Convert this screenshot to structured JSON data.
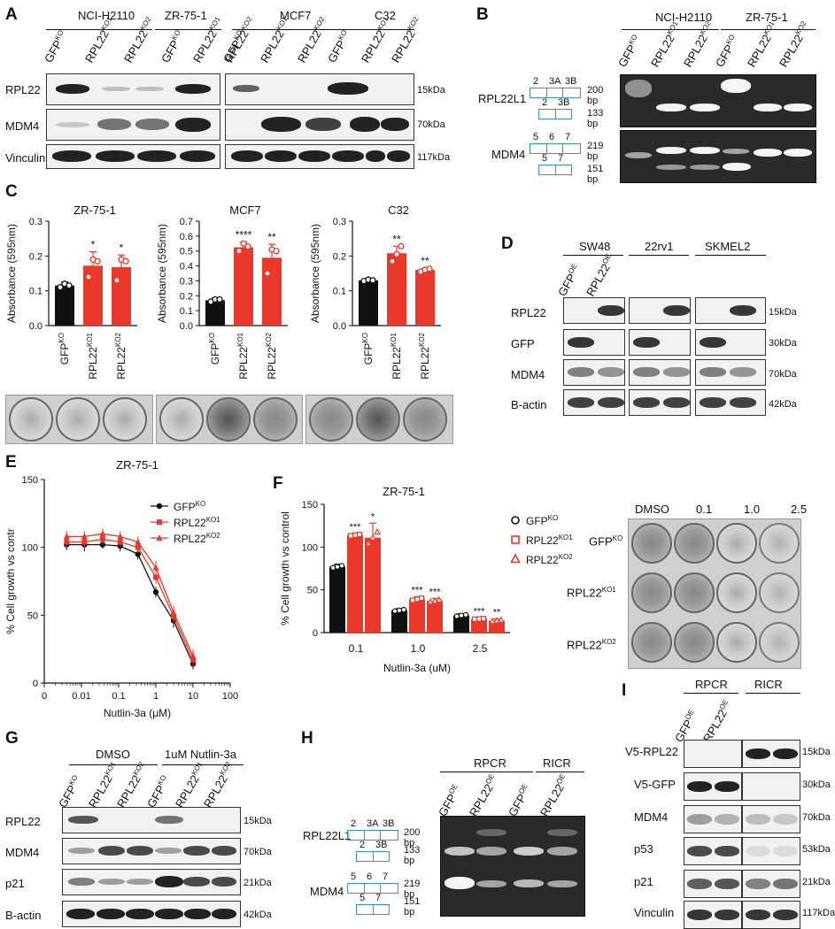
{
  "panels": {
    "A": {
      "letter": "A",
      "cell_lines": [
        "NCI-H2110",
        "ZR-75-1",
        "MCF7",
        "C32"
      ],
      "lanes": [
        {
          "base": "GFP",
          "sup": "KO"
        },
        {
          "base": "RPL22",
          "sup": "KO1"
        },
        {
          "base": "RPL22",
          "sup": "KO2"
        },
        {
          "base": "GFP",
          "sup": "KO"
        },
        {
          "base": "RPL22",
          "sup": "KO1"
        },
        {
          "base": "RPL22",
          "sup": "KO2"
        },
        {
          "base": "GFP",
          "sup": "KO"
        },
        {
          "base": "RPL22",
          "sup": "KO1"
        },
        {
          "base": "RPL22",
          "sup": "KO2"
        },
        {
          "base": "GFP",
          "sup": "KO"
        },
        {
          "base": "RPL22",
          "sup": "KO1"
        },
        {
          "base": "RPL22",
          "sup": "KO2"
        }
      ],
      "rows": [
        {
          "name": "RPL22",
          "kda": "15kDa"
        },
        {
          "name": "MDM4",
          "kda": "70kDa"
        },
        {
          "name": "Vinculin",
          "kda": "117kDa"
        }
      ]
    },
    "B": {
      "letter": "B",
      "cell_lines": [
        "NCI-H2110",
        "ZR-75-1"
      ],
      "lanes": [
        {
          "base": "GFP",
          "sup": "KO"
        },
        {
          "base": "RPL22",
          "sup": "KO1"
        },
        {
          "base": "RPL22",
          "sup": "KO2"
        },
        {
          "base": "GFP",
          "sup": "KO"
        },
        {
          "base": "RPL22",
          "sup": "KO1"
        },
        {
          "base": "RPL22",
          "sup": "KO2"
        }
      ],
      "genes": [
        {
          "name": "RPL22L1",
          "exons_top": [
            "2",
            "3A",
            "3B"
          ],
          "exons_bottom": [
            "2",
            "3B"
          ],
          "sizes": [
            "200 bp",
            "133 bp"
          ]
        },
        {
          "name": "MDM4",
          "exons_top": [
            "5",
            "6",
            "7"
          ],
          "exons_bottom": [
            "5",
            "7"
          ],
          "sizes": [
            "219 bp",
            "151 bp"
          ]
        }
      ]
    },
    "C": {
      "letter": "C",
      "ylabel": "Absorbance (595nm)",
      "xlabels": [
        {
          "base": "GFP",
          "sup": "KO"
        },
        {
          "base": "RPL22",
          "sup": "KO1"
        },
        {
          "base": "RPL22",
          "sup": "KO2"
        }
      ]
    },
    "D": {
      "letter": "D",
      "cell_lines": [
        "SW48",
        "22rv1",
        "SKMEL2"
      ],
      "lanes": [
        {
          "base": "GFP",
          "sup": "OE"
        },
        {
          "base": "RPL22",
          "sup": "OE"
        }
      ],
      "rows": [
        {
          "name": "RPL22",
          "kda": "15kDa"
        },
        {
          "name": "GFP",
          "kda": "30kDa"
        },
        {
          "name": "MDM4",
          "kda": "70kDa"
        },
        {
          "name": "B-actin",
          "kda": "42kDa"
        }
      ]
    },
    "E": {
      "letter": "E"
    },
    "F": {
      "letter": "F",
      "plate_cols": [
        "DMSO",
        "0.1",
        "1.0",
        "2.5"
      ],
      "plate_rows": [
        {
          "base": "GFP",
          "sup": "KO"
        },
        {
          "base": "RPL22",
          "sup": "KO1"
        },
        {
          "base": "RPL22",
          "sup": "KO2"
        }
      ]
    },
    "G": {
      "letter": "G",
      "groups": [
        "DMSO",
        "1uM Nutlin-3a"
      ],
      "lanes": [
        {
          "base": "GFP",
          "sup": "KO"
        },
        {
          "base": "RPL22",
          "sup": "KO1"
        },
        {
          "base": "RPL22",
          "sup": "KO2"
        },
        {
          "base": "GFP",
          "sup": "KO"
        },
        {
          "base": "RPL22",
          "sup": "KO1"
        },
        {
          "base": "RPL22",
          "sup": "KO2"
        }
      ],
      "rows": [
        {
          "name": "RPL22",
          "kda": "15kDa"
        },
        {
          "name": "MDM4",
          "kda": "70kDa"
        },
        {
          "name": "p21",
          "kda": "21kDa"
        },
        {
          "name": "B-actin",
          "kda": "42kDa"
        }
      ]
    },
    "H": {
      "letter": "H",
      "groups": [
        "RPCR",
        "RICR"
      ],
      "lanes": [
        {
          "base": "GFP",
          "sup": "OE"
        },
        {
          "base": "RPL22",
          "sup": "OE"
        },
        {
          "base": "GFP",
          "sup": "OE"
        },
        {
          "base": "RPL22",
          "sup": "OE"
        }
      ],
      "genes": [
        {
          "name": "RPL22L1",
          "exons_top": [
            "2",
            "3A",
            "3B"
          ],
          "exons_bottom": [
            "2",
            "3B"
          ],
          "sizes": [
            "200 bp",
            "133 bp"
          ]
        },
        {
          "name": "MDM4",
          "exons_top": [
            "5",
            "6",
            "7"
          ],
          "exons_bottom": [
            "5",
            "7"
          ],
          "sizes": [
            "219 bp",
            "151 bp"
          ]
        }
      ]
    },
    "I": {
      "letter": "I",
      "groups": [
        "RPCR",
        "RICR"
      ],
      "lanes": [
        {
          "base": "GFP",
          "sup": "OE"
        },
        {
          "base": "RPL22",
          "sup": "OE"
        }
      ],
      "rows": [
        {
          "name": "V5-RPL22",
          "kda": "15kDa"
        },
        {
          "name": "V5-GFP",
          "kda": "30kDa"
        },
        {
          "name": "MDM4",
          "kda": "70kDa"
        },
        {
          "name": "p53",
          "kda": "53kDa"
        },
        {
          "name": "p21",
          "kda": "21kDa"
        },
        {
          "name": "Vinculin",
          "kda": "117kDa"
        }
      ]
    }
  },
  "chart_data": [
    {
      "type": "bar",
      "panel": "C",
      "title": "ZR-75-1",
      "ylabel": "Absorbance (595nm)",
      "ylim": [
        0,
        0.3
      ],
      "yticks": [
        "0.0",
        "0.1",
        "0.2",
        "0.3"
      ],
      "categories": [
        "GFPKO",
        "RPL22KO1",
        "RPL22KO2"
      ],
      "values": [
        0.115,
        0.172,
        0.168
      ],
      "errors": [
        0.01,
        0.04,
        0.035
      ],
      "significance": [
        "",
        "*",
        "*"
      ],
      "points": [
        [
          0.11,
          0.12,
          0.115
        ],
        [
          0.14,
          0.19,
          0.185
        ],
        [
          0.13,
          0.19,
          0.185
        ]
      ],
      "colors": [
        "#111111",
        "#e8392b",
        "#e8392b"
      ]
    },
    {
      "type": "bar",
      "panel": "C",
      "title": "MCF7",
      "ylabel": "Absorbance (595nm)",
      "ylim": [
        0,
        0.7
      ],
      "yticks": [
        "0.0",
        "0.1",
        "0.2",
        "0.3",
        "0.4",
        "0.5",
        "0.6",
        "0.7"
      ],
      "categories": [
        "GFPKO",
        "RPL22KO1",
        "RPL22KO2"
      ],
      "values": [
        0.17,
        0.525,
        0.455
      ],
      "errors": [
        0.015,
        0.035,
        0.09
      ],
      "significance": [
        "",
        "****",
        "**"
      ],
      "points": [
        [
          0.16,
          0.175,
          0.175
        ],
        [
          0.5,
          0.55,
          0.53
        ],
        [
          0.35,
          0.51,
          0.5
        ]
      ],
      "colors": [
        "#111111",
        "#e8392b",
        "#e8392b"
      ]
    },
    {
      "type": "bar",
      "panel": "C",
      "title": "C32",
      "ylabel": "Absorbance (595nm)",
      "ylim": [
        0,
        0.3
      ],
      "yticks": [
        "0.0",
        "0.1",
        "0.2",
        "0.3"
      ],
      "categories": [
        "GFPKO",
        "RPL22KO1",
        "RPL22KO2"
      ],
      "values": [
        0.13,
        0.208,
        0.16
      ],
      "errors": [
        0.005,
        0.02,
        0.005
      ],
      "significance": [
        "",
        "**",
        "**"
      ],
      "points": [
        [
          0.128,
          0.132,
          0.13
        ],
        [
          0.185,
          0.205,
          0.228
        ],
        [
          0.155,
          0.16,
          0.163
        ]
      ],
      "colors": [
        "#111111",
        "#e8392b",
        "#e8392b"
      ]
    },
    {
      "type": "line",
      "panel": "E",
      "title": "ZR-75-1",
      "xlabel": "Nutlin-3a (μM)",
      "ylabel": "% Cell growth vs contr",
      "xscale": "log",
      "xlim": [
        0,
        100
      ],
      "xticks": [
        "0",
        "0.01",
        "0.1",
        "1",
        "10",
        "100"
      ],
      "ylim": [
        0,
        150
      ],
      "yticks": [
        "0",
        "50",
        "100",
        "150"
      ],
      "x": [
        0.004,
        0.012,
        0.037,
        0.11,
        0.33,
        1,
        3,
        10
      ],
      "series": [
        {
          "name": "GFPKO",
          "name_base": "GFP",
          "name_sup": "KO",
          "color": "#111111",
          "marker": "circle",
          "values": [
            102,
            102,
            102,
            101,
            95,
            67,
            46,
            14
          ],
          "errors": [
            4,
            5,
            3,
            4,
            4,
            4,
            5,
            4
          ]
        },
        {
          "name": "RPL22KO1",
          "name_base": "RPL22",
          "name_sup": "KO1",
          "color": "#e8392b",
          "marker": "square",
          "values": [
            104,
            104,
            106,
            104,
            100,
            78,
            49,
            17
          ],
          "errors": [
            4,
            4,
            4,
            4,
            4,
            5,
            5,
            5
          ]
        },
        {
          "name": "RPL22KO2",
          "name_base": "RPL22",
          "name_sup": "KO2",
          "color": "#e8392b",
          "marker": "triangle",
          "values": [
            108,
            108,
            110,
            108,
            104,
            85,
            52,
            20
          ],
          "errors": [
            4,
            4,
            4,
            4,
            4,
            5,
            5,
            5
          ]
        }
      ],
      "legend": "top-right"
    },
    {
      "type": "bar",
      "panel": "F",
      "title": "ZR-75-1",
      "xlabel": "Nutlin-3a (uM)",
      "ylabel": "% Cell growth vs control",
      "ylim": [
        0,
        150
      ],
      "yticks": [
        "0",
        "50",
        "100",
        "150"
      ],
      "categories": [
        "0.1",
        "1.0",
        "2.5"
      ],
      "series": [
        {
          "name": "GFPKO",
          "name_base": "GFP",
          "name_sup": "KO",
          "color": "#111111",
          "marker": "circle",
          "values": [
            77,
            26,
            20
          ],
          "errors": [
            3,
            2,
            2
          ],
          "significance": [
            "",
            "",
            ""
          ]
        },
        {
          "name": "RPL22KO1",
          "name_base": "RPL22",
          "name_sup": "KO1",
          "color": "#e8392b",
          "marker": "square",
          "values": [
            114,
            39,
            16
          ],
          "errors": [
            2,
            3,
            1
          ],
          "significance": [
            "***",
            "***",
            "***"
          ]
        },
        {
          "name": "RPL22KO2",
          "name_base": "RPL22",
          "name_sup": "KO2",
          "color": "#e8392b",
          "marker": "triangle",
          "values": [
            111,
            37,
            14
          ],
          "errors": [
            17,
            3,
            2
          ],
          "significance": [
            "*",
            "***",
            "**"
          ]
        }
      ],
      "legend": "right"
    }
  ]
}
